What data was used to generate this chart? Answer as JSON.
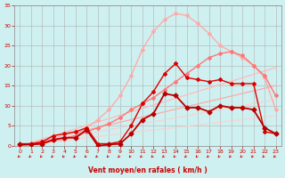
{
  "background_color": "#cff0f0",
  "grid_color": "#b0b0b0",
  "xlabel": "Vent moyen/en rafales ( km/h )",
  "xlabel_color": "#cc0000",
  "xlim": [
    -0.5,
    23.5
  ],
  "ylim": [
    0,
    35
  ],
  "yticks": [
    0,
    5,
    10,
    15,
    20,
    25,
    30,
    35
  ],
  "xticks": [
    0,
    1,
    2,
    3,
    4,
    5,
    6,
    7,
    8,
    9,
    10,
    11,
    12,
    13,
    14,
    15,
    16,
    17,
    18,
    19,
    20,
    21,
    22,
    23
  ],
  "lines": [
    {
      "x": [
        0,
        23
      ],
      "y": [
        0,
        15
      ],
      "color": "#ffaaaa",
      "lw": 0.9,
      "marker": null
    },
    {
      "x": [
        0,
        23
      ],
      "y": [
        0,
        19.5
      ],
      "color": "#ffbbbb",
      "lw": 0.9,
      "marker": null
    },
    {
      "x": [
        0,
        4,
        5,
        6,
        7,
        8,
        9,
        10,
        11,
        12,
        13,
        14,
        15,
        16,
        17,
        18,
        19,
        20,
        21,
        22,
        23
      ],
      "y": [
        0,
        1.5,
        2.5,
        4.5,
        6.5,
        9.0,
        12.5,
        17.5,
        24.0,
        28.5,
        31.5,
        33.0,
        32.5,
        30.5,
        28.0,
        25.0,
        23.5,
        22.0,
        20.0,
        17.0,
        9.0
      ],
      "color": "#ffaaaa",
      "lw": 1.0,
      "marker": "D",
      "markersize": 2.0
    },
    {
      "x": [
        0,
        1,
        2,
        3,
        4,
        5,
        6,
        7,
        8,
        9,
        10,
        11,
        12,
        13,
        14,
        15,
        16,
        17,
        18,
        19,
        20,
        21,
        22,
        23
      ],
      "y": [
        0,
        0.5,
        1.0,
        1.5,
        2.0,
        2.5,
        3.5,
        4.5,
        5.5,
        7.0,
        9.0,
        10.5,
        12.0,
        14.0,
        16.0,
        18.0,
        20.0,
        22.0,
        23.0,
        23.5,
        22.5,
        20.0,
        17.5,
        12.5
      ],
      "color": "#ff7777",
      "lw": 1.0,
      "marker": "D",
      "markersize": 2.0
    },
    {
      "x": [
        0,
        1,
        2,
        3,
        4,
        5,
        6,
        7,
        8,
        9,
        10,
        11,
        12,
        13,
        14,
        15,
        16,
        17,
        18,
        19,
        20,
        21,
        22,
        23
      ],
      "y": [
        0.5,
        0.5,
        1.0,
        2.5,
        3.0,
        3.5,
        4.5,
        0.5,
        0.5,
        1.0,
        5.0,
        10.5,
        13.5,
        18.0,
        20.5,
        17.0,
        16.5,
        16.0,
        16.5,
        15.5,
        15.5,
        15.5,
        3.5,
        3.0
      ],
      "color": "#dd0000",
      "lw": 1.0,
      "marker": "D",
      "markersize": 2.0
    },
    {
      "x": [
        0,
        1,
        2,
        3,
        4,
        5,
        6,
        7,
        8,
        9,
        10,
        11,
        12,
        13,
        14,
        15,
        16,
        17,
        18,
        19,
        20,
        21,
        22,
        23
      ],
      "y": [
        0.3,
        0.3,
        0.5,
        1.5,
        2.0,
        2.0,
        4.0,
        0.0,
        0.3,
        0.5,
        3.0,
        6.5,
        8.0,
        13.0,
        12.5,
        9.5,
        9.5,
        8.5,
        10.0,
        9.5,
        9.5,
        9.0,
        4.5,
        3.0
      ],
      "color": "#bb0000",
      "lw": 1.3,
      "marker": "D",
      "markersize": 2.5
    },
    {
      "x": [
        0,
        23
      ],
      "y": [
        0,
        7.5
      ],
      "color": "#ffcccc",
      "lw": 0.7,
      "marker": null
    },
    {
      "x": [
        0,
        23
      ],
      "y": [
        0,
        11.5
      ],
      "color": "#ffcccc",
      "lw": 0.7,
      "marker": null
    }
  ],
  "wind_arrows": {
    "x_positions": [
      0,
      1,
      2,
      3,
      4,
      5,
      6,
      7,
      8,
      9,
      10,
      11,
      12,
      13,
      14,
      15,
      16,
      17,
      18,
      19,
      20,
      21,
      22,
      23
    ],
    "color": "#cc0000"
  }
}
